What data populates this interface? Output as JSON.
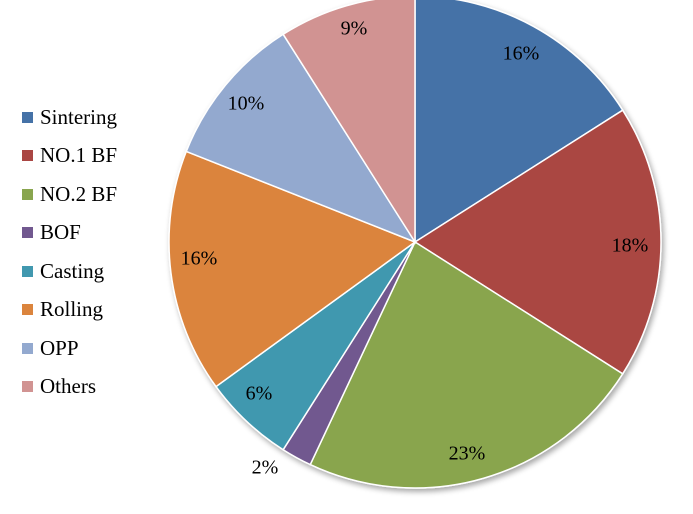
{
  "chart_data": {
    "type": "pie",
    "categories": [
      "Sintering",
      "NO.1 BF",
      "NO.2 BF",
      "BOF",
      "Casting",
      "Rolling",
      "OPP",
      "Others"
    ],
    "values": [
      16,
      18,
      23,
      2,
      6,
      16,
      10,
      9
    ],
    "value_labels": [
      "16%",
      "18%",
      "23%",
      "2%",
      "6%",
      "16%",
      "10%",
      "9%"
    ],
    "colors": [
      "#4572A7",
      "#AA4643",
      "#89A54E",
      "#71588F",
      "#4198AF",
      "#DB843D",
      "#93A9CF",
      "#D19392"
    ],
    "title": "",
    "legend_position": "left",
    "start_angle": "12 o'clock",
    "direction": "clockwise"
  }
}
